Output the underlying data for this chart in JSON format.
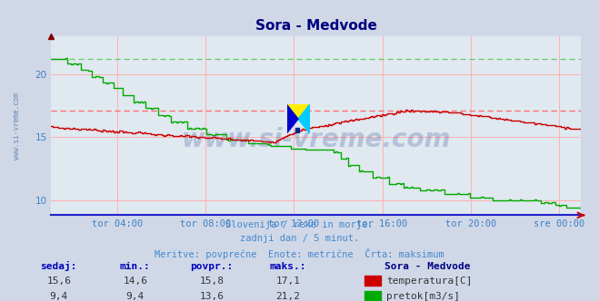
{
  "title": "Sora - Medvode",
  "title_color": "#000080",
  "bg_color": "#d0d8e8",
  "plot_bg_color": "#e0e8f0",
  "grid_color": "#ffb0b0",
  "xlabel_color": "#4080c0",
  "ylabel_color": "#4080c0",
  "x_tick_labels": [
    "tor 04:00",
    "tor 08:00",
    "tor 12:00",
    "tor 16:00",
    "tor 20:00",
    "sre 00:00"
  ],
  "x_tick_positions": [
    0.125,
    0.292,
    0.458,
    0.625,
    0.792,
    0.958
  ],
  "ylim_min": 8.8,
  "ylim_max": 23.0,
  "yticks": [
    10,
    15,
    20
  ],
  "subtitle_lines": [
    "Slovenija / reke in morje.",
    "zadnji dan / 5 minut.",
    "Meritve: povprečne  Enote: metrične  Črta: maksimum"
  ],
  "subtitle_color": "#4488cc",
  "legend_title": "Sora - Medvode",
  "legend_title_color": "#000080",
  "legend_items": [
    {
      "label": "temperatura[C]",
      "color": "#cc0000"
    },
    {
      "label": "pretok[m3/s]",
      "color": "#00aa00"
    }
  ],
  "table_headers": [
    "sedaj:",
    "min.:",
    "povpr.:",
    "maks.:"
  ],
  "table_row1": [
    "15,6",
    "14,6",
    "15,8",
    "17,1"
  ],
  "table_row2": [
    "9,4",
    "9,4",
    "13,6",
    "21,2"
  ],
  "temp_max_line": 17.1,
  "flow_max_line": 21.2,
  "temp_color": "#cc0000",
  "flow_color": "#00aa00",
  "max_line_color_temp": "#ff6666",
  "max_line_color_flow": "#66cc66",
  "watermark": "www.si-vreme.com",
  "watermark_color": "#1a3a8a",
  "watermark_alpha": 0.22,
  "axis_color": "#2222cc",
  "side_text": "www.si-vreme.com",
  "side_text_color": "#5577aa"
}
